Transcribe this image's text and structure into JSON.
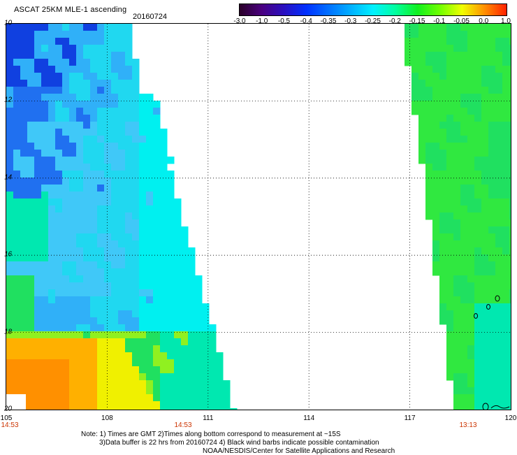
{
  "header": {
    "title": "ASCAT 25KM MLE-1 ascending",
    "date": "20160724"
  },
  "colorbar": {
    "ticks": [
      "-3.0",
      "-1.0",
      "-0.5",
      "-0.4",
      "-0.35",
      "-0.3",
      "-0.25",
      "-0.2",
      "-0.15",
      "-0.1",
      "-0.05",
      "0.0",
      "1.0"
    ],
    "colors": [
      "#2a0028",
      "#4a0080",
      "#2a10c0",
      "#0030ff",
      "#0070ff",
      "#00b0ff",
      "#00f0ff",
      "#00ffa0",
      "#10f020",
      "#70ff00",
      "#f0ff00",
      "#ff9000",
      "#ff2000"
    ]
  },
  "map": {
    "lat_labels": [
      "10",
      "12",
      "14",
      "16",
      "18",
      "20"
    ],
    "lon_labels": [
      "105",
      "108",
      "111",
      "114",
      "117",
      "120"
    ],
    "pass_times": [
      "14:53",
      "14:53",
      "13:13"
    ],
    "missing_color": "#ffffff",
    "swath_colors": {
      "deep_blue": "#1040e0",
      "blue": "#2070f0",
      "light_blue": "#30b0f8",
      "cyan": "#00f0f0",
      "teal": "#00e8b0",
      "green": "#20e060",
      "yellow_green": "#90f020",
      "yellow": "#f0f000",
      "orange": "#ff9000"
    }
  },
  "notes": {
    "line1": "Note: 1) Times are GMT 2)Times along bottom correspond to measurement at ~15S",
    "line2": "3)Data buffer is 22 hrs from 20160724 4) Black wind barbs indicate possible contamination",
    "line3": "NOAA/NESDIS/Center for Satellite Applications and Research"
  }
}
